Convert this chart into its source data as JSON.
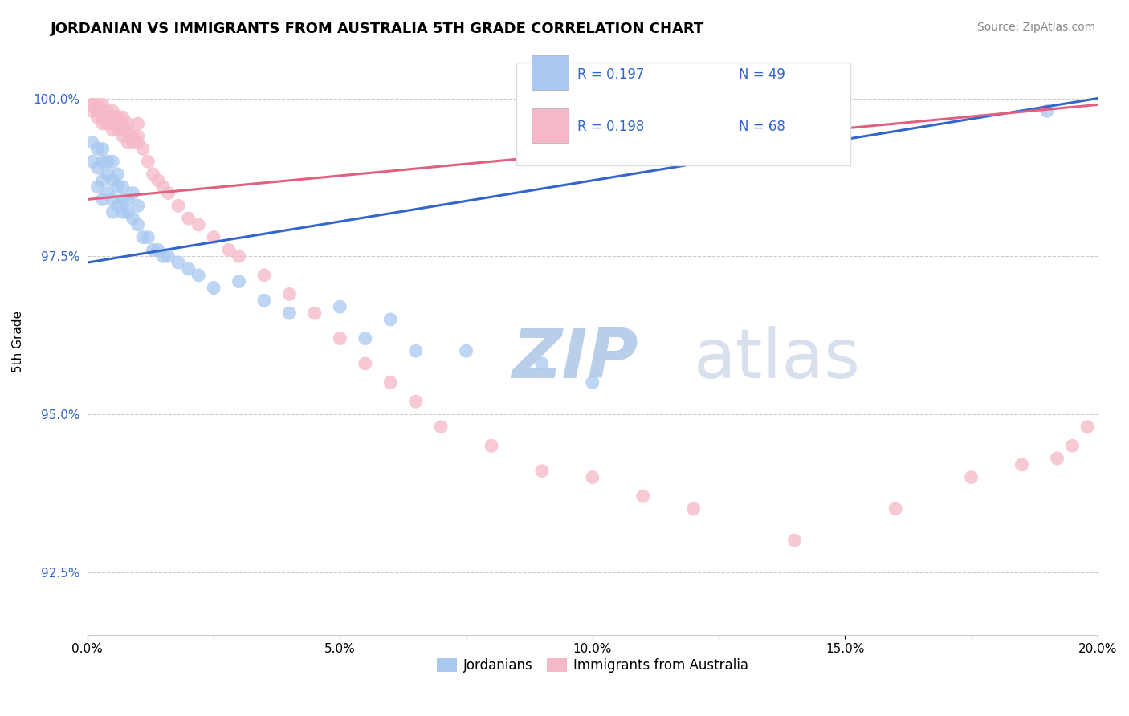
{
  "title": "JORDANIAN VS IMMIGRANTS FROM AUSTRALIA 5TH GRADE CORRELATION CHART",
  "source_text": "Source: ZipAtlas.com",
  "ylabel": "5th Grade",
  "xlim": [
    0.0,
    0.2
  ],
  "ylim": [
    0.915,
    1.008
  ],
  "xtick_labels": [
    "0.0%",
    "",
    "5.0%",
    "",
    "10.0%",
    "",
    "15.0%",
    "",
    "20.0%"
  ],
  "xtick_vals": [
    0.0,
    0.025,
    0.05,
    0.075,
    0.1,
    0.125,
    0.15,
    0.175,
    0.2
  ],
  "ytick_labels": [
    "92.5%",
    "95.0%",
    "97.5%",
    "100.0%"
  ],
  "ytick_vals": [
    0.925,
    0.95,
    0.975,
    1.0
  ],
  "legend_r1": "R = 0.197",
  "legend_n1": "N = 49",
  "legend_r2": "R = 0.198",
  "legend_n2": "N = 68",
  "jordanians_color": "#A8C8F0",
  "australia_color": "#F5B8C8",
  "trendline_jordan_color": "#3366CC",
  "trendline_australia_color": "#E06080",
  "watermark_color": "#C8D8EE",
  "jordanians_x": [
    0.001,
    0.001,
    0.002,
    0.002,
    0.002,
    0.003,
    0.003,
    0.003,
    0.003,
    0.004,
    0.004,
    0.004,
    0.005,
    0.005,
    0.005,
    0.005,
    0.006,
    0.006,
    0.006,
    0.007,
    0.007,
    0.007,
    0.008,
    0.008,
    0.009,
    0.009,
    0.01,
    0.01,
    0.011,
    0.012,
    0.013,
    0.014,
    0.015,
    0.016,
    0.018,
    0.02,
    0.022,
    0.025,
    0.03,
    0.035,
    0.04,
    0.05,
    0.055,
    0.06,
    0.065,
    0.075,
    0.09,
    0.1,
    0.19
  ],
  "jordanians_y": [
    0.993,
    0.99,
    0.992,
    0.989,
    0.986,
    0.992,
    0.99,
    0.987,
    0.984,
    0.99,
    0.988,
    0.985,
    0.99,
    0.987,
    0.984,
    0.982,
    0.988,
    0.986,
    0.983,
    0.986,
    0.984,
    0.982,
    0.984,
    0.982,
    0.985,
    0.981,
    0.983,
    0.98,
    0.978,
    0.978,
    0.976,
    0.976,
    0.975,
    0.975,
    0.974,
    0.973,
    0.972,
    0.97,
    0.971,
    0.968,
    0.966,
    0.967,
    0.962,
    0.965,
    0.96,
    0.96,
    0.958,
    0.955,
    0.998
  ],
  "australia_x": [
    0.001,
    0.001,
    0.001,
    0.002,
    0.002,
    0.002,
    0.002,
    0.003,
    0.003,
    0.003,
    0.003,
    0.003,
    0.004,
    0.004,
    0.004,
    0.004,
    0.005,
    0.005,
    0.005,
    0.005,
    0.005,
    0.006,
    0.006,
    0.006,
    0.007,
    0.007,
    0.007,
    0.007,
    0.008,
    0.008,
    0.008,
    0.009,
    0.009,
    0.01,
    0.01,
    0.01,
    0.011,
    0.012,
    0.013,
    0.014,
    0.015,
    0.016,
    0.018,
    0.02,
    0.022,
    0.025,
    0.028,
    0.03,
    0.035,
    0.04,
    0.045,
    0.05,
    0.055,
    0.06,
    0.065,
    0.07,
    0.08,
    0.09,
    0.1,
    0.11,
    0.12,
    0.14,
    0.16,
    0.175,
    0.185,
    0.192,
    0.195,
    0.198
  ],
  "australia_y": [
    0.999,
    0.999,
    0.998,
    0.999,
    0.998,
    0.998,
    0.997,
    0.999,
    0.998,
    0.997,
    0.997,
    0.996,
    0.998,
    0.997,
    0.996,
    0.996,
    0.998,
    0.997,
    0.997,
    0.996,
    0.995,
    0.997,
    0.996,
    0.995,
    0.997,
    0.996,
    0.995,
    0.994,
    0.996,
    0.995,
    0.993,
    0.994,
    0.993,
    0.996,
    0.994,
    0.993,
    0.992,
    0.99,
    0.988,
    0.987,
    0.986,
    0.985,
    0.983,
    0.981,
    0.98,
    0.978,
    0.976,
    0.975,
    0.972,
    0.969,
    0.966,
    0.962,
    0.958,
    0.955,
    0.952,
    0.948,
    0.945,
    0.941,
    0.94,
    0.937,
    0.935,
    0.93,
    0.935,
    0.94,
    0.942,
    0.943,
    0.945,
    0.948
  ],
  "trendline_jordan_x0": 0.0,
  "trendline_jordan_y0": 0.974,
  "trendline_jordan_x1": 0.2,
  "trendline_jordan_y1": 1.0,
  "trendline_australia_x0": 0.0,
  "trendline_australia_y0": 0.984,
  "trendline_australia_x1": 0.2,
  "trendline_australia_y1": 0.999
}
